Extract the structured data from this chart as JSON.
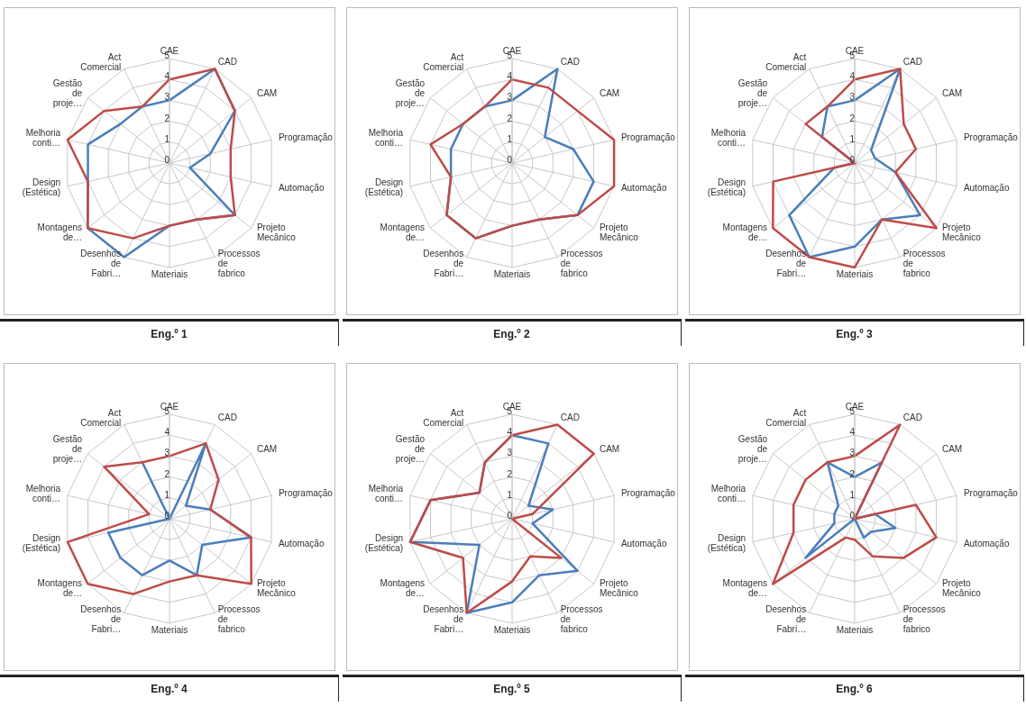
{
  "chart_data": [
    {
      "type": "radar",
      "title": "Eng.º 1",
      "categories": [
        "CAE",
        "CAD",
        "CAM",
        "Programação",
        "Automação",
        "Projeto Mecânico",
        "Processos de fabrico",
        "Materiais",
        "Desenhos de Fabri…",
        "Montagens de…",
        "Design (Estética)",
        "Melhoria conti…",
        "Gestão de proje…",
        "Act Comercial"
      ],
      "ylim": [
        0,
        5
      ],
      "yticks": [
        0,
        1,
        2,
        3,
        4,
        5
      ],
      "grid": true,
      "series": [
        {
          "color": "#4a7ebb",
          "values": [
            3,
            5,
            4,
            2,
            1,
            4,
            3,
            3,
            5,
            5,
            4,
            4,
            3,
            3
          ]
        },
        {
          "color": "#be4b48",
          "values": [
            4,
            5,
            4,
            3,
            3,
            4,
            3,
            3,
            4,
            5,
            4,
            5,
            4,
            3
          ]
        }
      ]
    },
    {
      "type": "radar",
      "title": "Eng.º 2",
      "categories": [
        "CAE",
        "CAD",
        "CAM",
        "Programação",
        "Automação",
        "Projeto Mecânico",
        "Processos de fabrico",
        "Materiais",
        "Desenhos de Fabri…",
        "Montagens de…",
        "Design (Estética)",
        "Melhoria conti…",
        "Gestão de proje…",
        "Act Comercial"
      ],
      "ylim": [
        0,
        5
      ],
      "yticks": [
        0,
        1,
        2,
        3,
        4,
        5
      ],
      "grid": true,
      "series": [
        {
          "color": "#4a7ebb",
          "values": [
            3,
            5,
            2,
            3,
            4,
            4,
            3,
            3,
            4,
            4,
            3,
            3,
            3,
            3
          ]
        },
        {
          "color": "#be4b48",
          "values": [
            4,
            4,
            4,
            5,
            5,
            4,
            3,
            3,
            4,
            4,
            3,
            4,
            3,
            3
          ]
        }
      ]
    },
    {
      "type": "radar",
      "title": "Eng.º 3",
      "categories": [
        "CAE",
        "CAD",
        "CAM",
        "Programação",
        "Automação",
        "Projeto Mecânico",
        "Processos de fabrico",
        "Materiais",
        "Desenhos de Fabri…",
        "Montagens de…",
        "Design (Estética)",
        "Melhoria conti…",
        "Gestão de proje…",
        "Act Comercial"
      ],
      "ylim": [
        0,
        5
      ],
      "yticks": [
        0,
        1,
        2,
        3,
        4,
        5
      ],
      "grid": true,
      "series": [
        {
          "color": "#4a7ebb",
          "values": [
            3,
            5,
            1,
            1,
            2,
            4,
            3,
            4,
            5,
            4,
            1,
            0,
            2,
            3
          ]
        },
        {
          "color": "#be4b48",
          "values": [
            4,
            5,
            3,
            3,
            2,
            5,
            3,
            5,
            5,
            5,
            4,
            0,
            3,
            3
          ]
        }
      ]
    },
    {
      "type": "radar",
      "title": "Eng.º 4",
      "categories": [
        "CAE",
        "CAD",
        "CAM",
        "Programação",
        "Automação",
        "Projeto Mecânico",
        "Processos de fabrico",
        "Materiais",
        "Desenhos de Fabri…",
        "Montagens de…",
        "Design (Estética)",
        "Melhoria conti…",
        "Gestão de proje…",
        "Act Comercial"
      ],
      "ylim": [
        0,
        5
      ],
      "yticks": [
        0,
        1,
        2,
        3,
        4,
        5
      ],
      "grid": true,
      "series": [
        {
          "color": "#4a7ebb",
          "values": [
            0,
            4,
            1,
            2,
            4,
            2,
            3,
            2,
            3,
            3,
            3,
            0,
            0,
            3
          ]
        },
        {
          "color": "#be4b48",
          "values": [
            3,
            4,
            3,
            2,
            4,
            5,
            3,
            3,
            4,
            5,
            5,
            1,
            4,
            3
          ]
        }
      ]
    },
    {
      "type": "radar",
      "title": "Eng.º 5",
      "categories": [
        "CAE",
        "CAD",
        "CAM",
        "Programação",
        "Automação",
        "Projeto Mecânico",
        "Processos de fabrico",
        "Materiais",
        "Desenhos de Fabri…",
        "Montagens de…",
        "Design (Estética)",
        "Melhoria conti…",
        "Gestão de proje…",
        "Act Comercial"
      ],
      "ylim": [
        0,
        5
      ],
      "yticks": [
        0,
        1,
        2,
        3,
        4,
        5
      ],
      "grid": true,
      "series": [
        {
          "color": "#4a7ebb",
          "values": [
            4,
            4,
            1,
            2,
            1,
            4,
            3,
            4,
            5,
            2,
            5,
            4,
            2,
            3
          ]
        },
        {
          "color": "#be4b48",
          "values": [
            4,
            5,
            5,
            1,
            0,
            3,
            2,
            3,
            5,
            3,
            5,
            4,
            2,
            3
          ]
        }
      ]
    },
    {
      "type": "radar",
      "title": "Eng.º 6",
      "categories": [
        "CAE",
        "CAD",
        "CAM",
        "Programação",
        "Automação",
        "Projeto Mecânico",
        "Processos de fabrico",
        "Materiais",
        "Desenhos de Fabri…",
        "Montagens de…",
        "Design (Estética)",
        "Melhoria conti…",
        "Gestão de proje…",
        "Act Comercial"
      ],
      "ylim": [
        0,
        5
      ],
      "yticks": [
        0,
        1,
        2,
        3,
        4,
        5
      ],
      "grid": true,
      "series": [
        {
          "color": "#4a7ebb",
          "values": [
            2,
            3,
            0,
            1,
            2,
            1,
            1,
            0,
            0,
            3,
            1,
            1,
            1,
            3
          ]
        },
        {
          "color": "#be4b48",
          "values": [
            3,
            5,
            0,
            3,
            4,
            3,
            2,
            1,
            1,
            5,
            3,
            3,
            3,
            3
          ]
        }
      ]
    }
  ]
}
